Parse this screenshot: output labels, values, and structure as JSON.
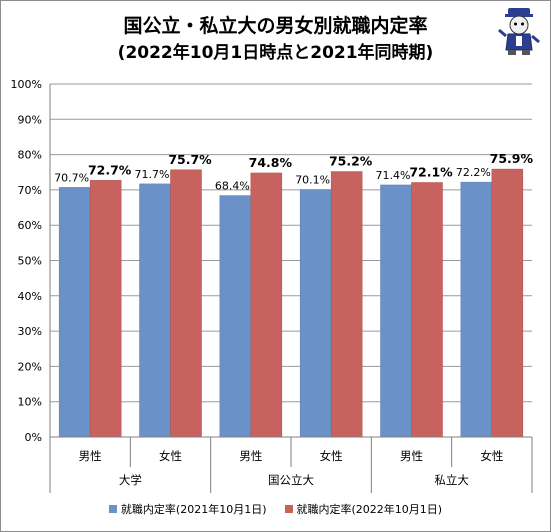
{
  "title": "国公立・私立大の男女別就職内定率",
  "subtitle": "(2022年10月1日時点と2021年同時期)",
  "chart_data": {
    "type": "bar",
    "ylim": [
      0,
      100
    ],
    "ytick_labels": [
      "0%",
      "10%",
      "20%",
      "30%",
      "40%",
      "50%",
      "60%",
      "70%",
      "80%",
      "90%",
      "100%"
    ],
    "categories": [
      "男性",
      "女性",
      "男性",
      "女性",
      "男性",
      "女性"
    ],
    "groups": [
      "大学",
      "国公立大",
      "私立大"
    ],
    "series": [
      {
        "name": "就職内定率(2021年10月1日)",
        "color": "#6b92c8",
        "values": [
          70.7,
          71.7,
          68.4,
          70.1,
          71.4,
          72.2
        ],
        "labels": [
          "70.7%",
          "71.7%",
          "68.4%",
          "70.1%",
          "71.4%",
          "72.2%"
        ]
      },
      {
        "name": "就職内定率(2022年10月1日)",
        "color": "#c8625f",
        "values": [
          72.7,
          75.7,
          74.8,
          75.2,
          72.1,
          75.9
        ],
        "labels": [
          "72.7%",
          "75.7%",
          "74.8%",
          "75.2%",
          "72.1%",
          "75.9%"
        ]
      }
    ],
    "grid": true
  },
  "legend": {
    "item0": "就職内定率(2021年10月1日)",
    "item1": "就職内定率(2022年10月1日)"
  }
}
